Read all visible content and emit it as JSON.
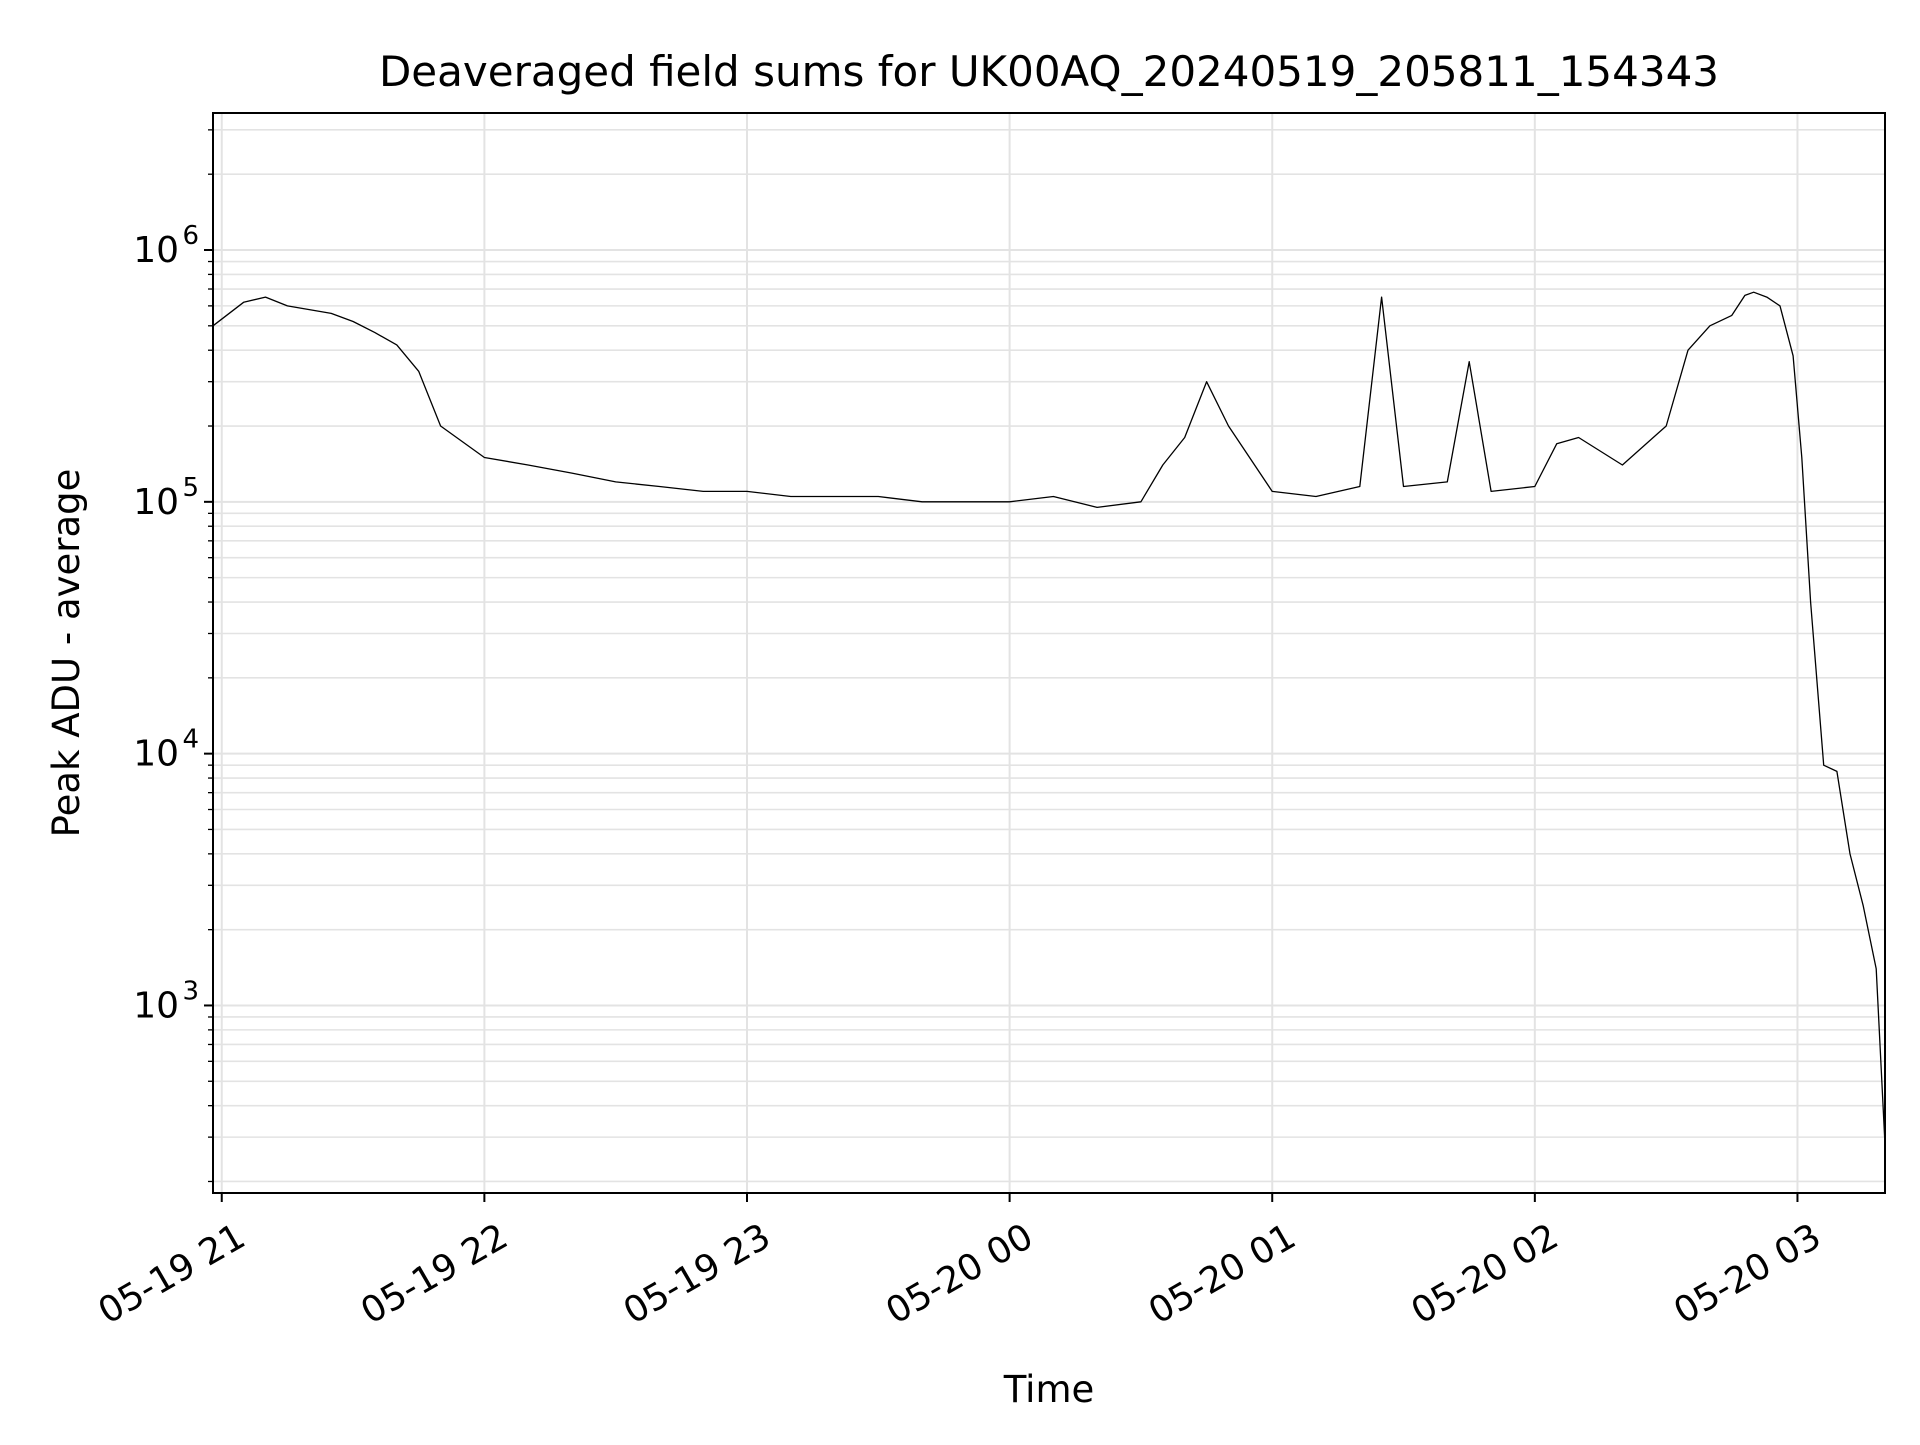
{
  "chart_data": {
    "type": "line",
    "title": "Deaveraged field sums for UK00AQ_20240519_205811_154343",
    "xlabel": "Time",
    "ylabel": "Peak ADU - average",
    "yscale": "log",
    "ylim": [
      180,
      3500000
    ],
    "xlim": [
      "2024-05-19 20:58",
      "2024-05-20 03:20"
    ],
    "grid": true,
    "line_color": "#000000",
    "grid_color": "#e3e3e3",
    "x_ticks": [
      {
        "time": "2024-05-19 21:00",
        "label": "05-19 21"
      },
      {
        "time": "2024-05-19 22:00",
        "label": "05-19 22"
      },
      {
        "time": "2024-05-19 23:00",
        "label": "05-19 23"
      },
      {
        "time": "2024-05-20 00:00",
        "label": "05-20 00"
      },
      {
        "time": "2024-05-20 01:00",
        "label": "05-20 01"
      },
      {
        "time": "2024-05-20 02:00",
        "label": "05-20 02"
      },
      {
        "time": "2024-05-20 03:00",
        "label": "05-20 03"
      }
    ],
    "y_ticks": [
      {
        "value": 1000,
        "base": "10",
        "exp": "3"
      },
      {
        "value": 10000,
        "base": "10",
        "exp": "4"
      },
      {
        "value": 100000,
        "base": "10",
        "exp": "5"
      },
      {
        "value": 1000000,
        "base": "10",
        "exp": "6"
      }
    ],
    "series": [
      {
        "x": [
          "2024-05-19 20:58",
          "2024-05-19 21:05",
          "2024-05-19 21:10",
          "2024-05-19 21:15",
          "2024-05-19 21:20",
          "2024-05-19 21:25",
          "2024-05-19 21:30",
          "2024-05-19 21:35",
          "2024-05-19 21:40",
          "2024-05-19 21:45",
          "2024-05-19 21:50",
          "2024-05-19 22:00",
          "2024-05-19 22:10",
          "2024-05-19 22:20",
          "2024-05-19 22:30",
          "2024-05-19 22:40",
          "2024-05-19 22:50",
          "2024-05-19 23:00",
          "2024-05-19 23:10",
          "2024-05-19 23:20",
          "2024-05-19 23:30",
          "2024-05-19 23:40",
          "2024-05-19 23:50",
          "2024-05-20 00:00",
          "2024-05-20 00:10",
          "2024-05-20 00:20",
          "2024-05-20 00:30",
          "2024-05-20 00:35",
          "2024-05-20 00:40",
          "2024-05-20 00:45",
          "2024-05-20 00:50",
          "2024-05-20 01:00",
          "2024-05-20 01:10",
          "2024-05-20 01:20",
          "2024-05-20 01:25",
          "2024-05-20 01:30",
          "2024-05-20 01:40",
          "2024-05-20 01:45",
          "2024-05-20 01:50",
          "2024-05-20 02:00",
          "2024-05-20 02:05",
          "2024-05-20 02:10",
          "2024-05-20 02:20",
          "2024-05-20 02:30",
          "2024-05-20 02:35",
          "2024-05-20 02:40",
          "2024-05-20 02:45",
          "2024-05-20 02:48",
          "2024-05-20 02:50",
          "2024-05-20 02:53",
          "2024-05-20 02:56",
          "2024-05-20 02:59",
          "2024-05-20 03:01",
          "2024-05-20 03:03",
          "2024-05-20 03:06",
          "2024-05-20 03:09",
          "2024-05-20 03:12",
          "2024-05-20 03:15",
          "2024-05-20 03:18",
          "2024-05-20 03:20"
        ],
        "y": [
          500000,
          620000,
          650000,
          600000,
          580000,
          560000,
          520000,
          470000,
          420000,
          330000,
          200000,
          150000,
          140000,
          130000,
          120000,
          115000,
          110000,
          110000,
          105000,
          105000,
          105000,
          100000,
          100000,
          100000,
          105000,
          95000,
          100000,
          140000,
          180000,
          300000,
          200000,
          110000,
          105000,
          115000,
          650000,
          115000,
          120000,
          360000,
          110000,
          115000,
          170000,
          180000,
          140000,
          200000,
          400000,
          500000,
          550000,
          660000,
          680000,
          650000,
          600000,
          380000,
          150000,
          40000,
          9000,
          8500,
          4000,
          2500,
          1400,
          280
        ]
      }
    ]
  }
}
